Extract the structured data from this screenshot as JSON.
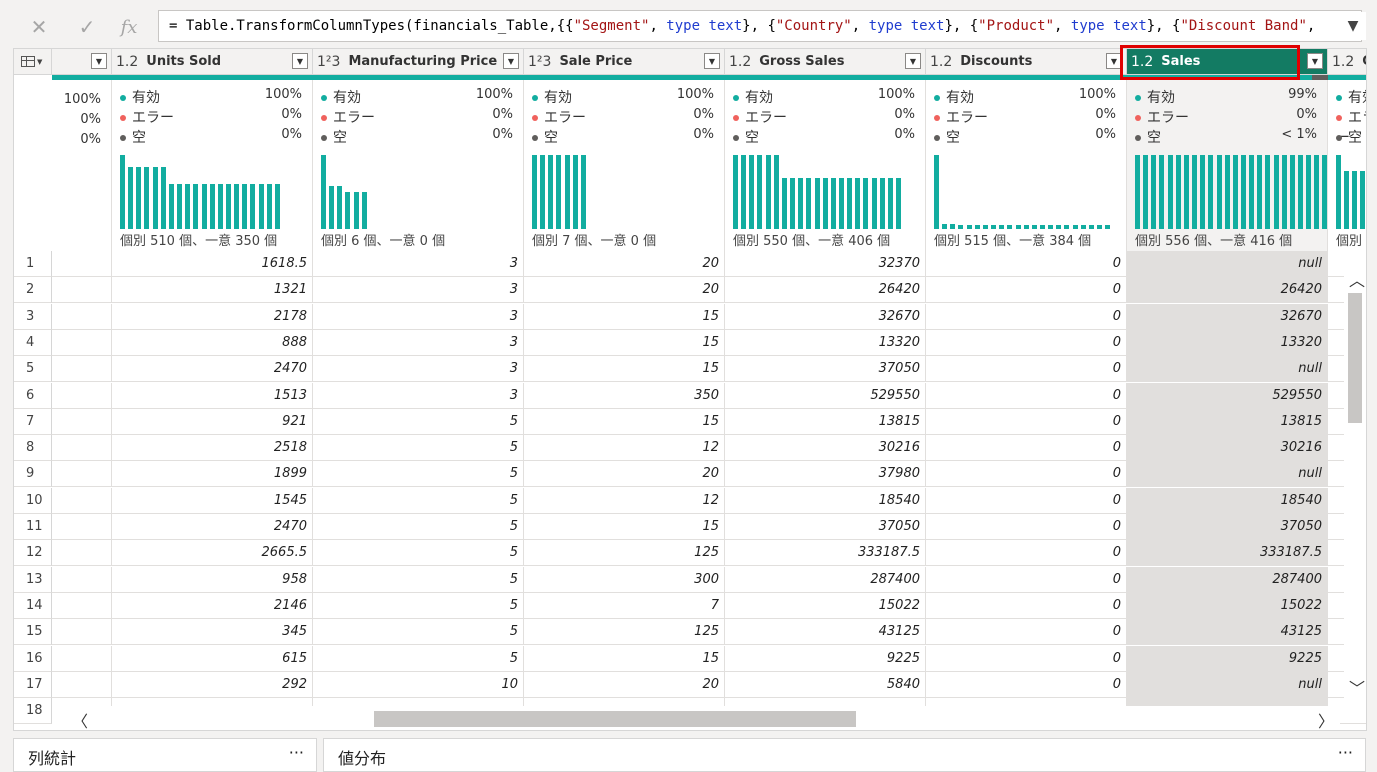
{
  "formula": {
    "prefix": "= Table.TransformColumnTypes(financials_Table,{{",
    "tokens": [
      {
        "t": "\"Segment\"",
        "c": "st"
      },
      {
        "t": ", ",
        "c": ""
      },
      {
        "t": "type text",
        "c": "kw"
      },
      {
        "t": "}, {",
        "c": ""
      },
      {
        "t": "\"Country\"",
        "c": "st"
      },
      {
        "t": ", ",
        "c": ""
      },
      {
        "t": "type text",
        "c": "kw"
      },
      {
        "t": "}, {",
        "c": ""
      },
      {
        "t": "\"Product\"",
        "c": "st"
      },
      {
        "t": ", ",
        "c": ""
      },
      {
        "t": "type text",
        "c": "kw"
      },
      {
        "t": "}, {",
        "c": ""
      },
      {
        "t": "\"Discount Band\"",
        "c": "st"
      },
      {
        "t": ",",
        "c": ""
      }
    ],
    "cancel_icon": "close-icon",
    "commit_icon": "check-icon",
    "fx_label": "fx"
  },
  "columns": [
    {
      "type": "1.2",
      "name": "Units Sold",
      "valid": "100%",
      "error": "0%",
      "empty": "0%",
      "counts": "個別 510 個、一意 350 個",
      "bars": [
        95,
        80,
        80,
        80,
        80,
        80,
        58,
        58,
        58,
        58,
        58,
        58,
        58,
        58,
        58,
        58,
        58,
        58,
        58,
        58
      ],
      "selected": false
    },
    {
      "type": "1²3",
      "name": "Manufacturing Price",
      "valid": "100%",
      "error": "0%",
      "empty": "0%",
      "counts": "個別 6 個、一意 0 個",
      "bars": [
        95,
        55,
        55,
        48,
        48,
        48
      ],
      "selected": false
    },
    {
      "type": "1²3",
      "name": "Sale Price",
      "valid": "100%",
      "error": "0%",
      "empty": "0%",
      "counts": "個別 7 個、一意 0 個",
      "bars": [
        95,
        95,
        95,
        95,
        95,
        95,
        95
      ],
      "selected": false
    },
    {
      "type": "1.2",
      "name": "Gross Sales",
      "valid": "100%",
      "error": "0%",
      "empty": "0%",
      "counts": "個別 550 個、一意 406 個",
      "bars": [
        95,
        95,
        95,
        95,
        95,
        95,
        65,
        65,
        65,
        65,
        65,
        65,
        65,
        65,
        65,
        65,
        65,
        65,
        65,
        65,
        65
      ],
      "selected": false
    },
    {
      "type": "1.2",
      "name": "Discounts",
      "valid": "100%",
      "error": "0%",
      "empty": "0%",
      "counts": "個別 515 個、一意 384 個",
      "bars": [
        95,
        7,
        7,
        5,
        5,
        5,
        5,
        5,
        5,
        5,
        5,
        5,
        5,
        5,
        5,
        5,
        5,
        5,
        5,
        5,
        5,
        5
      ],
      "selected": false
    },
    {
      "type": "1.2",
      "name": "Sales",
      "valid": "99%",
      "error": "0%",
      "empty": "< 1%",
      "counts": "個別 556 個、一意 416 個",
      "bars": [
        95,
        95,
        95,
        95,
        95,
        95,
        95,
        95,
        95,
        95,
        95,
        95,
        95,
        95,
        95,
        95,
        95,
        95,
        95,
        95,
        95,
        95,
        95,
        95
      ],
      "selected": true
    },
    {
      "type": "1.2",
      "name": "C",
      "valid": "",
      "error": "",
      "empty": "",
      "counts": "個別",
      "bars": [
        95,
        75,
        75,
        75,
        75,
        75
      ],
      "selected": false
    }
  ],
  "labels": {
    "valid": "有効",
    "error": "エラー",
    "empty": "空",
    "first_col_valid": "100%",
    "first_col_error": "0%",
    "first_col_empty": "0%"
  },
  "colors": {
    "valid": "#12ada0",
    "error": "#f0625d",
    "empty": "#605e5c",
    "selected_header": "#137b63",
    "highlight": "#e00000"
  },
  "rows": [
    [
      "1",
      "1618.5",
      "3",
      "20",
      "32370",
      "0",
      "null"
    ],
    [
      "2",
      "1321",
      "3",
      "20",
      "26420",
      "0",
      "26420"
    ],
    [
      "3",
      "2178",
      "3",
      "15",
      "32670",
      "0",
      "32670"
    ],
    [
      "4",
      "888",
      "3",
      "15",
      "13320",
      "0",
      "13320"
    ],
    [
      "5",
      "2470",
      "3",
      "15",
      "37050",
      "0",
      "null"
    ],
    [
      "6",
      "1513",
      "3",
      "350",
      "529550",
      "0",
      "529550"
    ],
    [
      "7",
      "921",
      "5",
      "15",
      "13815",
      "0",
      "13815"
    ],
    [
      "8",
      "2518",
      "5",
      "12",
      "30216",
      "0",
      "30216"
    ],
    [
      "9",
      "1899",
      "5",
      "20",
      "37980",
      "0",
      "null"
    ],
    [
      "10",
      "1545",
      "5",
      "12",
      "18540",
      "0",
      "18540"
    ],
    [
      "11",
      "2470",
      "5",
      "15",
      "37050",
      "0",
      "37050"
    ],
    [
      "12",
      "2665.5",
      "5",
      "125",
      "333187.5",
      "0",
      "333187.5"
    ],
    [
      "13",
      "958",
      "5",
      "300",
      "287400",
      "0",
      "287400"
    ],
    [
      "14",
      "2146",
      "5",
      "7",
      "15022",
      "0",
      "15022"
    ],
    [
      "15",
      "345",
      "5",
      "125",
      "43125",
      "0",
      "43125"
    ],
    [
      "16",
      "615",
      "5",
      "15",
      "9225",
      "0",
      "9225"
    ],
    [
      "17",
      "292",
      "10",
      "20",
      "5840",
      "0",
      "null"
    ],
    [
      "18",
      "",
      "",
      "",
      "",
      "",
      ""
    ]
  ],
  "panels": {
    "left_title": "列統計",
    "right_title": "値分布",
    "more": "···"
  }
}
